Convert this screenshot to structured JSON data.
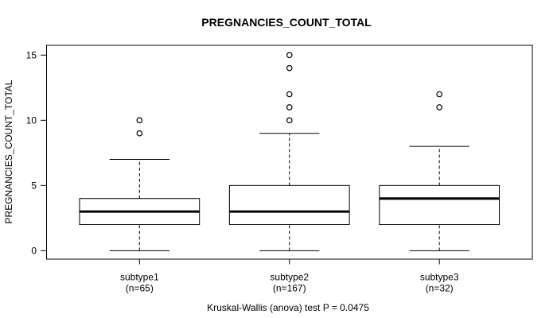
{
  "title": "PREGNANCIES_COUNT_TOTAL",
  "caption": "Kruskal-Wallis (anova) test P = 0.0475",
  "chart_data": {
    "type": "boxplot",
    "title": "PREGNANCIES_COUNT_TOTAL",
    "ylabel": "PREGNANCIES_COUNT_TOTAL",
    "xlabel": "",
    "yticks": [
      0,
      5,
      10,
      15
    ],
    "ylim": [
      -0.65,
      15.75
    ],
    "xlim": [
      0.38,
      3.62
    ],
    "grid": false,
    "legend": "none",
    "box_width": 0.8,
    "cap_width": 0.4,
    "groups": [
      {
        "label": "subtype1",
        "sublabel": "(n=65)",
        "n": 65,
        "position": 1,
        "whisker_low": 0,
        "q1": 2,
        "median": 3,
        "q3": 4,
        "whisker_high": 7,
        "outliers": [
          9,
          10
        ]
      },
      {
        "label": "subtype2",
        "sublabel": "(n=167)",
        "n": 167,
        "position": 2,
        "whisker_low": 0,
        "q1": 2,
        "median": 3,
        "q3": 5,
        "whisker_high": 9,
        "outliers": [
          10,
          11,
          12,
          14,
          15
        ]
      },
      {
        "label": "subtype3",
        "sublabel": "(n=32)",
        "n": 32,
        "position": 3,
        "whisker_low": 0,
        "q1": 2,
        "median": 4,
        "q3": 5,
        "whisker_high": 8,
        "outliers": [
          11,
          12
        ]
      }
    ],
    "annotation": "Kruskal-Wallis (anova) test P = 0.0475",
    "colors": {
      "line": "#000000",
      "box_fill": "#ffffff",
      "background": "#ffffff"
    }
  }
}
